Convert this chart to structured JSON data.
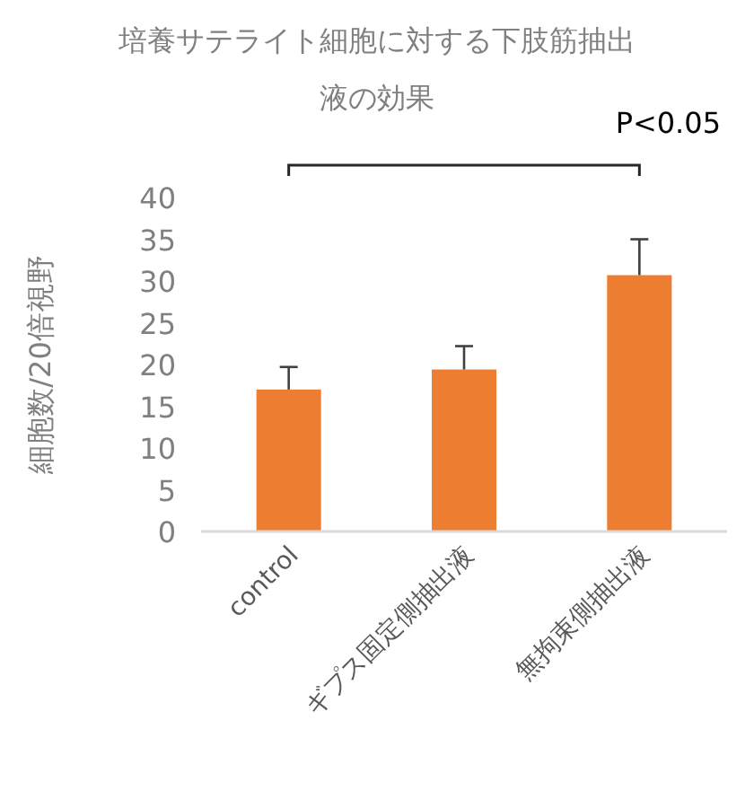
{
  "chart_data": {
    "type": "bar",
    "title": "培養サテライト細胞に対する下肢筋抽出液の効果",
    "ylabel": "細胞数/20倍視野",
    "categories": [
      "control",
      "ギプス固定側抽出液",
      "無拘束側抽出液"
    ],
    "values": [
      17.0,
      19.4,
      30.7
    ],
    "color": "#ed7d31",
    "errors": [
      [
        17.0,
        19.7
      ],
      [
        19.4,
        22.2
      ],
      [
        30.7,
        35.0
      ]
    ],
    "ylim": [
      0,
      40
    ],
    "yticks": [
      0,
      5,
      10,
      15,
      20,
      25,
      30,
      35,
      40
    ],
    "grid": false,
    "annotations": [
      "P<0.05"
    ]
  }
}
